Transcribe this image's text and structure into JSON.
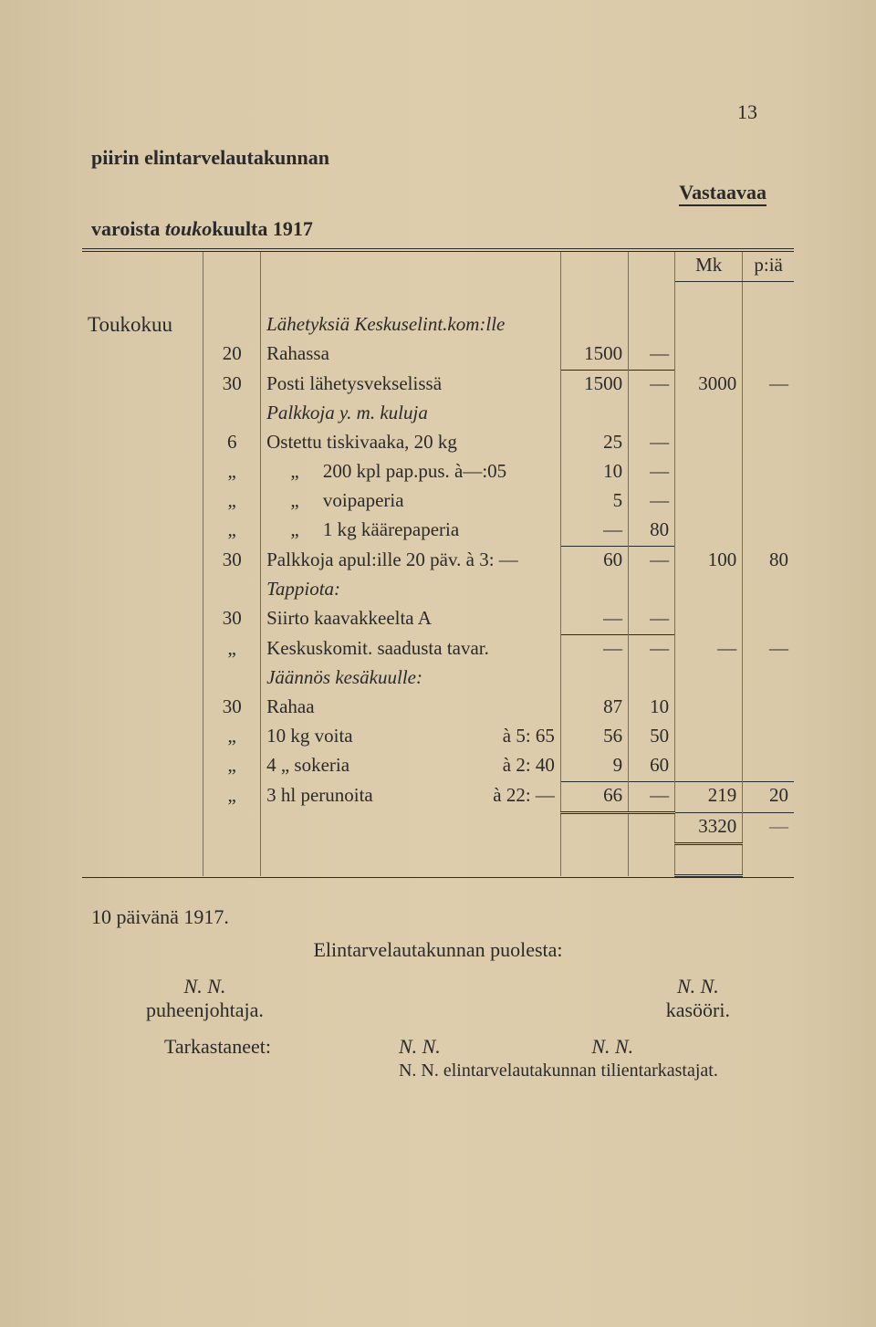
{
  "page_number": "13",
  "header": {
    "line1": "piirin elintarvelautakunnan",
    "right": "Vastaavaa",
    "line2_plain": "varoista ",
    "line2_italic": "touko",
    "line2_rest": "kuulta 1917"
  },
  "column_headers": {
    "mk": "Mk",
    "p": "p:iä"
  },
  "month": "Toukokuu",
  "rows": [
    {
      "day": "",
      "desc": "Lähetyksiä Keskuselint.kom:lle",
      "italic": true
    },
    {
      "day": "20",
      "desc": "Rahassa",
      "sub_mk": "1500",
      "sub_p": "—"
    },
    {
      "day": "30",
      "desc": "Posti lähetysvekselissä",
      "sub_mk": "1500",
      "sub_p": "—",
      "mk": "3000",
      "p": "—",
      "sumline": true
    },
    {
      "day": "",
      "desc": "Palkkoja y. m. kuluja",
      "italic": true
    },
    {
      "day": "6",
      "desc": "Ostettu tiskivaaka, 20 kg",
      "sub_mk": "25",
      "sub_p": "—"
    },
    {
      "day": "„",
      "desc": "     „     200 kpl pap.pus. à—:05",
      "sub_mk": "10",
      "sub_p": "—"
    },
    {
      "day": "„",
      "desc": "     „     voipaperia",
      "sub_mk": "5",
      "sub_p": "—"
    },
    {
      "day": "„",
      "desc": "     „     1 kg käärepaperia",
      "sub_mk": "—",
      "sub_p": "80"
    },
    {
      "day": "30",
      "desc": "Palkkoja apul:ille 20 päv. à 3: —",
      "sub_mk": "60",
      "sub_p": "—",
      "mk": "100",
      "p": "80",
      "sumline": true
    },
    {
      "day": "",
      "desc": "Tappiota:",
      "italic": true
    },
    {
      "day": "30",
      "desc": "Siirto kaavakkeelta A",
      "sub_mk": "—",
      "sub_p": "—"
    },
    {
      "day": "„",
      "desc": "Keskuskomit. saadusta tavar.",
      "sub_mk": "—",
      "sub_p": "—",
      "mk": "—",
      "p": "—",
      "sumline": true
    },
    {
      "day": "",
      "desc": "Jäännös kesäkuulle:",
      "italic": true
    },
    {
      "day": "30",
      "desc": "Rahaa",
      "sub_mk": "87",
      "sub_p": "10"
    },
    {
      "day": "„",
      "desc_left": "10 kg voita",
      "desc_right": "à  5: 65",
      "sub_mk": "56",
      "sub_p": "50"
    },
    {
      "day": "„",
      "desc_left": "4    „   sokeria",
      "desc_right": "à  2: 40",
      "sub_mk": "9",
      "sub_p": "60"
    },
    {
      "day": "„",
      "desc_left": "3 hl perunoita",
      "desc_right": "à 22: —",
      "sub_mk": "66",
      "sub_p": "—",
      "mk": "219",
      "p": "20",
      "sumline": true,
      "sumline_mk": true
    }
  ],
  "total": {
    "mk": "3320",
    "p": "—"
  },
  "footer": {
    "date_line": "10 päivänä 1917.",
    "on_behalf": "Elintarvelautakunnan puolesta:",
    "left_sig": {
      "name": "N. N.",
      "title": "puheenjohtaja."
    },
    "right_sig": {
      "name": "N. N.",
      "title": "kasööri."
    },
    "checked_label": "Tarkastaneet:",
    "checker1": "N. N.",
    "checker2": "N. N.",
    "checker_line": "N.   N.   elintarvelautakunnan tilientarkastajat."
  }
}
